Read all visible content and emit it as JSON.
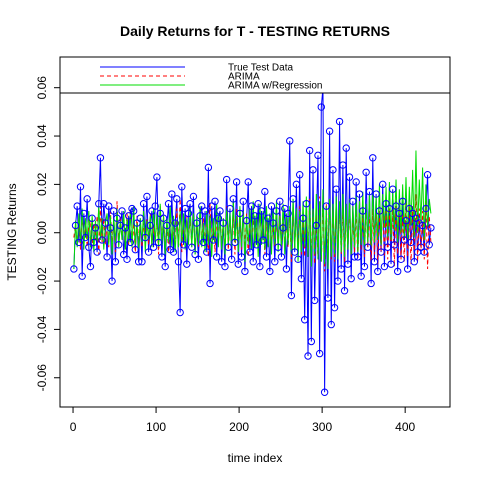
{
  "chart_data": {
    "type": "line",
    "title": "Daily Returns for T - TESTING RETURNS",
    "xlabel": "time index",
    "ylabel": "TESTING Returns",
    "xlim": [
      -15.7,
      454
    ],
    "xticks": [
      0,
      100,
      200,
      300,
      400
    ],
    "ylim": [
      -0.0721,
      0.0727
    ],
    "yticks": [
      -0.06,
      -0.04,
      -0.02,
      {
        "value": 0,
        "label": "0.00"
      },
      0.02,
      0.04,
      0.06
    ],
    "legend": "top",
    "x": [
      1,
      3,
      5,
      7,
      9,
      11,
      13,
      15,
      17,
      19,
      21,
      23,
      25,
      27,
      29,
      31,
      33,
      35,
      37,
      39,
      41,
      43,
      45,
      47,
      49,
      51,
      53,
      55,
      57,
      59,
      61,
      63,
      65,
      67,
      69,
      71,
      73,
      75,
      77,
      79,
      81,
      83,
      85,
      87,
      89,
      91,
      93,
      95,
      97,
      99,
      101,
      103,
      105,
      107,
      109,
      111,
      113,
      115,
      117,
      119,
      121,
      123,
      125,
      127,
      129,
      131,
      133,
      135,
      137,
      139,
      141,
      143,
      145,
      147,
      149,
      151,
      153,
      155,
      157,
      159,
      161,
      163,
      165,
      167,
      169,
      171,
      173,
      175,
      177,
      179,
      181,
      183,
      185,
      187,
      189,
      191,
      193,
      195,
      197,
      199,
      201,
      203,
      205,
      207,
      209,
      211,
      213,
      215,
      217,
      219,
      221,
      223,
      225,
      227,
      229,
      231,
      233,
      235,
      237,
      239,
      241,
      243,
      245,
      247,
      249,
      251,
      253,
      255,
      257,
      259,
      261,
      263,
      265,
      267,
      269,
      271,
      273,
      275,
      277,
      279,
      281,
      283,
      285,
      287,
      289,
      291,
      293,
      295,
      297,
      299,
      301,
      303,
      305,
      307,
      309,
      311,
      313,
      315,
      317,
      319,
      321,
      323,
      325,
      327,
      329,
      331,
      333,
      335,
      337,
      339,
      341,
      343,
      345,
      347,
      349,
      351,
      353,
      355,
      357,
      359,
      361,
      363,
      365,
      367,
      369,
      371,
      373,
      375,
      377,
      379,
      381,
      383,
      385,
      387,
      389,
      391,
      393,
      395,
      397,
      399,
      401,
      403,
      405,
      407,
      409,
      411,
      413,
      415,
      417,
      419,
      421,
      423,
      425,
      427,
      429,
      431
    ],
    "series": [
      {
        "name": "True Test Data",
        "color": "#0000ff",
        "dash": false,
        "points": true,
        "values": [
          -0.015,
          0.003,
          0.011,
          -0.004,
          0.019,
          -0.018,
          0.008,
          -0.002,
          0.014,
          -0.006,
          -0.014,
          0.006,
          -0.004,
          0.002,
          -0.008,
          0.012,
          0.031,
          -0.003,
          0.012,
          0.004,
          -0.01,
          0.011,
          0.002,
          -0.02,
          0.009,
          -0.012,
          0.006,
          -0.005,
          0.003,
          0.009,
          -0.009,
          0.002,
          -0.011,
          0.007,
          -0.004,
          0.01,
          0.009,
          -0.007,
          0.004,
          -0.012,
          0.006,
          -0.012,
          0.012,
          -0.002,
          0.015,
          -0.008,
          0.003,
          0.009,
          -0.006,
          0.011,
          0.023,
          -0.004,
          0.008,
          -0.01,
          0.006,
          -0.014,
          0.003,
          0.012,
          -0.007,
          0.016,
          -0.008,
          0.004,
          0.014,
          -0.012,
          -0.033,
          0.019,
          -0.005,
          0.01,
          -0.013,
          0.008,
          0.012,
          -0.006,
          0.015,
          -0.009,
          0.004,
          -0.011,
          0.007,
          0.011,
          -0.004,
          0.009,
          -0.008,
          0.027,
          -0.021,
          0.011,
          -0.003,
          0.013,
          -0.01,
          0.006,
          0.009,
          -0.012,
          0.004,
          -0.014,
          0.022,
          -0.006,
          0.01,
          -0.011,
          0.014,
          -0.004,
          0.021,
          -0.013,
          0.008,
          -0.01,
          0.013,
          -0.016,
          0.005,
          0.021,
          -0.008,
          0.011,
          -0.012,
          0.007,
          -0.005,
          0.012,
          -0.014,
          0.009,
          -0.003,
          0.017,
          -0.01,
          0.006,
          -0.016,
          0.011,
          0.004,
          -0.012,
          0.009,
          -0.006,
          0.013,
          -0.01,
          0.002,
          0.01,
          -0.015,
          0.008,
          0.038,
          -0.026,
          0.014,
          -0.008,
          0.02,
          -0.011,
          0.024,
          -0.019,
          0.006,
          -0.036,
          0.012,
          -0.051,
          0.034,
          -0.045,
          0.026,
          -0.028,
          0.003,
          0.032,
          -0.05,
          0.052,
          0.06,
          -0.066,
          0.011,
          -0.027,
          0.042,
          -0.038,
          0.026,
          -0.031,
          0.018,
          -0.02,
          0.046,
          -0.015,
          0.028,
          -0.024,
          0.035,
          -0.013,
          0.023,
          -0.019,
          0.013,
          -0.01,
          0.021,
          -0.01,
          0.016,
          -0.018,
          0.009,
          -0.014,
          0.025,
          -0.006,
          0.017,
          -0.021,
          0.031,
          -0.012,
          0.016,
          -0.016,
          0.009,
          -0.008,
          0.02,
          -0.014,
          0.012,
          -0.006,
          0.01,
          -0.013,
          0.018,
          -0.005,
          0.011,
          -0.016,
          0.008,
          -0.011,
          0.013,
          -0.003,
          0.005,
          -0.015,
          0.01,
          -0.004,
          0.008,
          -0.012,
          0.006,
          -0.008,
          0.004,
          -0.006,
          0.003,
          -0.008,
          0.01,
          0.024,
          -0.005,
          0.002
        ]
      },
      {
        "name": "ARIMA",
        "color": "#ff0000",
        "dash": true,
        "points": false,
        "values": [
          -0.002,
          0.004,
          -0.005,
          0.006,
          -0.007,
          0.008,
          -0.004,
          0.005,
          -0.006,
          0.003,
          0.005,
          -0.006,
          0.004,
          -0.003,
          0.007,
          -0.009,
          0.011,
          -0.004,
          0.006,
          -0.005,
          0.004,
          -0.006,
          0.009,
          -0.004,
          0.006,
          -0.008,
          0.013,
          -0.005,
          0.007,
          -0.003,
          0.006,
          -0.007,
          0.008,
          -0.005,
          0.01,
          -0.006,
          0.004,
          -0.008,
          0.007,
          -0.004,
          0.005,
          -0.006,
          0.004,
          -0.003,
          0.006,
          -0.005,
          0.008,
          -0.006,
          0.003,
          -0.004,
          0.006,
          -0.009,
          0.011,
          -0.004,
          0.007,
          -0.006,
          0.005,
          -0.008,
          0.009,
          -0.005,
          0.004,
          -0.007,
          0.01,
          -0.006,
          0.014,
          -0.008,
          0.006,
          -0.005,
          0.007,
          -0.004,
          0.006,
          -0.005,
          0.008,
          -0.007,
          0.005,
          -0.006,
          0.009,
          -0.004,
          0.006,
          -0.005,
          0.007,
          -0.01,
          0.012,
          -0.006,
          0.005,
          -0.008,
          0.006,
          -0.004,
          0.007,
          -0.005,
          0.006,
          -0.008,
          0.011,
          -0.007,
          0.006,
          -0.005,
          0.008,
          -0.009,
          0.01,
          -0.004,
          0.005,
          -0.007,
          0.009,
          -0.006,
          0.008,
          -0.01,
          0.006,
          -0.005,
          0.007,
          -0.006,
          0.006,
          -0.008,
          0.01,
          -0.004,
          0.007,
          -0.009,
          0.005,
          -0.006,
          0.008,
          -0.005,
          0.004,
          -0.006,
          0.007,
          -0.005,
          0.009,
          -0.007,
          0.006,
          -0.004,
          0.005,
          -0.006,
          0.008,
          -0.012,
          0.01,
          -0.006,
          0.009,
          -0.008,
          0.011,
          -0.009,
          0.006,
          -0.01,
          0.012,
          -0.01,
          0.014,
          -0.012,
          0.01,
          -0.013,
          0.009,
          -0.011,
          0.015,
          -0.012,
          0.013,
          -0.016,
          0.012,
          -0.01,
          0.014,
          -0.011,
          0.01,
          -0.012,
          0.009,
          -0.008,
          0.011,
          -0.009,
          0.01,
          -0.012,
          0.008,
          -0.007,
          0.012,
          -0.009,
          0.006,
          -0.008,
          0.009,
          -0.011,
          0.013,
          -0.007,
          0.008,
          -0.01,
          0.011,
          -0.006,
          0.009,
          -0.012,
          0.01,
          -0.009,
          0.012,
          -0.013,
          0.011,
          -0.008,
          0.014,
          -0.01,
          0.009,
          -0.011,
          0.012,
          -0.007,
          0.01,
          -0.014,
          0.013,
          -0.009,
          0.015,
          -0.011,
          0.008,
          -0.012,
          0.014,
          -0.01,
          0.012,
          -0.013,
          0.011,
          -0.009,
          0.016,
          -0.012,
          0.01,
          -0.008,
          0.009,
          -0.011,
          0.013,
          -0.015,
          0.007,
          -0.004
        ]
      },
      {
        "name": "ARIMA w/Regression",
        "color": "#00dd00",
        "dash": false,
        "points": false,
        "values": [
          -0.015,
          0.005,
          -0.006,
          0.008,
          -0.004,
          0.01,
          -0.007,
          0.006,
          -0.003,
          0.009,
          -0.006,
          0.007,
          -0.008,
          0.005,
          -0.004,
          0.011,
          -0.003,
          0.006,
          -0.007,
          0.004,
          0.008,
          -0.005,
          0.007,
          -0.009,
          0.006,
          -0.004,
          0.01,
          -0.006,
          0.005,
          -0.003,
          0.009,
          -0.007,
          0.006,
          -0.004,
          0.008,
          -0.006,
          0.011,
          -0.005,
          0.004,
          -0.007,
          0.006,
          -0.004,
          0.009,
          -0.008,
          0.005,
          -0.003,
          0.007,
          -0.006,
          0.01,
          -0.004,
          0.008,
          -0.006,
          0.012,
          -0.005,
          0.007,
          -0.009,
          0.006,
          -0.004,
          0.011,
          -0.006,
          0.007,
          -0.008,
          0.005,
          -0.006,
          0.009,
          -0.004,
          0.008,
          -0.007,
          0.006,
          -0.005,
          0.01,
          -0.006,
          0.008,
          -0.009,
          0.007,
          -0.005,
          0.011,
          -0.006,
          0.004,
          -0.008,
          0.009,
          -0.005,
          0.007,
          -0.01,
          0.006,
          -0.004,
          0.012,
          -0.006,
          0.008,
          -0.007,
          0.006,
          -0.009,
          0.01,
          -0.005,
          0.008,
          -0.006,
          0.013,
          -0.004,
          0.007,
          -0.008,
          0.011,
          -0.006,
          0.009,
          -0.012,
          0.007,
          -0.005,
          0.01,
          -0.007,
          0.013,
          -0.006,
          0.008,
          -0.01,
          0.012,
          -0.005,
          0.009,
          -0.007,
          0.011,
          -0.006,
          0.008,
          -0.009,
          0.01,
          -0.005,
          0.013,
          -0.008,
          0.007,
          -0.006,
          0.012,
          -0.009,
          0.008,
          -0.005,
          0.011,
          -0.009,
          0.014,
          -0.007,
          0.01,
          -0.012,
          0.009,
          -0.008,
          0.013,
          -0.006,
          0.015,
          -0.01,
          0.012,
          -0.014,
          0.01,
          -0.009,
          0.016,
          -0.011,
          0.013,
          -0.012,
          0.018,
          -0.013,
          0.011,
          -0.015,
          0.014,
          -0.01,
          0.012,
          -0.009,
          0.015,
          -0.011,
          0.013,
          -0.008,
          0.016,
          -0.01,
          0.012,
          -0.007,
          0.014,
          -0.009,
          0.011,
          -0.006,
          0.015,
          -0.008,
          0.013,
          -0.005,
          0.017,
          -0.007,
          0.012,
          -0.004,
          0.016,
          -0.006,
          0.018,
          -0.004,
          0.015,
          -0.003,
          0.02,
          -0.005,
          0.016,
          0.002,
          0.019,
          -0.002,
          0.021,
          -0.003,
          0.017,
          0.001,
          0.022,
          -0.004,
          0.018,
          0.0,
          0.02,
          -0.002,
          0.023,
          -0.004,
          0.019,
          0.003,
          0.026,
          -0.002,
          0.034,
          0.0,
          0.022,
          0.004,
          0.027,
          -0.003,
          0.02,
          0.002,
          0.014,
          0.008
        ]
      }
    ]
  }
}
